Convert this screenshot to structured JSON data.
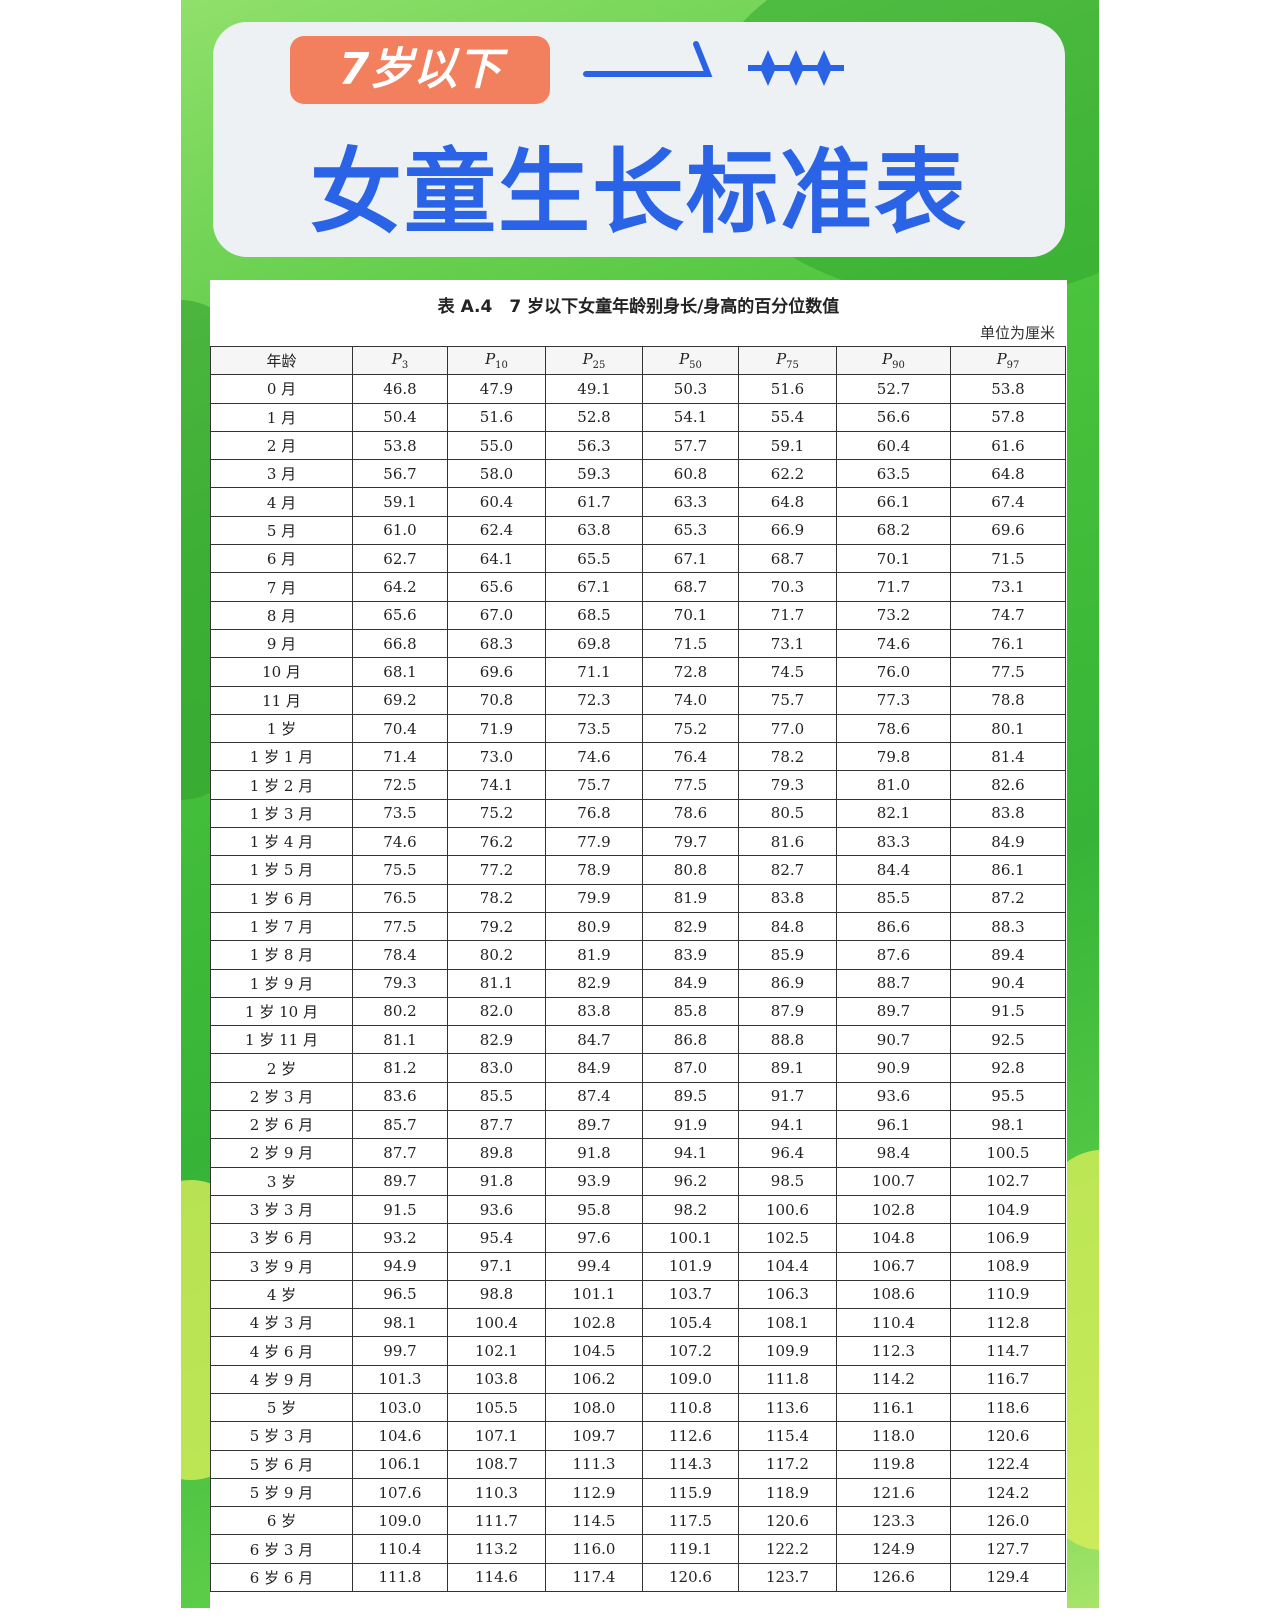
{
  "header": {
    "tag": "7岁以下",
    "title": "女童生长标准表"
  },
  "table": {
    "caption": "表 A.4　7 岁以下女童年龄别身长/身高的百分位数值",
    "unit": "单位为厘米",
    "columns": [
      "年龄",
      {
        "symbol": "P",
        "subscript": "3"
      },
      {
        "symbol": "P",
        "subscript": "10"
      },
      {
        "symbol": "P",
        "subscript": "25"
      },
      {
        "symbol": "P",
        "subscript": "50"
      },
      {
        "symbol": "P",
        "subscript": "75"
      },
      {
        "symbol": "P",
        "subscript": "90"
      },
      {
        "symbol": "P",
        "subscript": "97"
      }
    ],
    "rows": [
      [
        "0 月",
        "46.8",
        "47.9",
        "49.1",
        "50.3",
        "51.6",
        "52.7",
        "53.8"
      ],
      [
        "1 月",
        "50.4",
        "51.6",
        "52.8",
        "54.1",
        "55.4",
        "56.6",
        "57.8"
      ],
      [
        "2 月",
        "53.8",
        "55.0",
        "56.3",
        "57.7",
        "59.1",
        "60.4",
        "61.6"
      ],
      [
        "3 月",
        "56.7",
        "58.0",
        "59.3",
        "60.8",
        "62.2",
        "63.5",
        "64.8"
      ],
      [
        "4 月",
        "59.1",
        "60.4",
        "61.7",
        "63.3",
        "64.8",
        "66.1",
        "67.4"
      ],
      [
        "5 月",
        "61.0",
        "62.4",
        "63.8",
        "65.3",
        "66.9",
        "68.2",
        "69.6"
      ],
      [
        "6 月",
        "62.7",
        "64.1",
        "65.5",
        "67.1",
        "68.7",
        "70.1",
        "71.5"
      ],
      [
        "7 月",
        "64.2",
        "65.6",
        "67.1",
        "68.7",
        "70.3",
        "71.7",
        "73.1"
      ],
      [
        "8 月",
        "65.6",
        "67.0",
        "68.5",
        "70.1",
        "71.7",
        "73.2",
        "74.7"
      ],
      [
        "9 月",
        "66.8",
        "68.3",
        "69.8",
        "71.5",
        "73.1",
        "74.6",
        "76.1"
      ],
      [
        "10 月",
        "68.1",
        "69.6",
        "71.1",
        "72.8",
        "74.5",
        "76.0",
        "77.5"
      ],
      [
        "11 月",
        "69.2",
        "70.8",
        "72.3",
        "74.0",
        "75.7",
        "77.3",
        "78.8"
      ],
      [
        "1 岁",
        "70.4",
        "71.9",
        "73.5",
        "75.2",
        "77.0",
        "78.6",
        "80.1"
      ],
      [
        "1 岁 1 月",
        "71.4",
        "73.0",
        "74.6",
        "76.4",
        "78.2",
        "79.8",
        "81.4"
      ],
      [
        "1 岁 2 月",
        "72.5",
        "74.1",
        "75.7",
        "77.5",
        "79.3",
        "81.0",
        "82.6"
      ],
      [
        "1 岁 3 月",
        "73.5",
        "75.2",
        "76.8",
        "78.6",
        "80.5",
        "82.1",
        "83.8"
      ],
      [
        "1 岁 4 月",
        "74.6",
        "76.2",
        "77.9",
        "79.7",
        "81.6",
        "83.3",
        "84.9"
      ],
      [
        "1 岁 5 月",
        "75.5",
        "77.2",
        "78.9",
        "80.8",
        "82.7",
        "84.4",
        "86.1"
      ],
      [
        "1 岁 6 月",
        "76.5",
        "78.2",
        "79.9",
        "81.9",
        "83.8",
        "85.5",
        "87.2"
      ],
      [
        "1 岁 7 月",
        "77.5",
        "79.2",
        "80.9",
        "82.9",
        "84.8",
        "86.6",
        "88.3"
      ],
      [
        "1 岁 8 月",
        "78.4",
        "80.2",
        "81.9",
        "83.9",
        "85.9",
        "87.6",
        "89.4"
      ],
      [
        "1 岁 9 月",
        "79.3",
        "81.1",
        "82.9",
        "84.9",
        "86.9",
        "88.7",
        "90.4"
      ],
      [
        "1 岁 10 月",
        "80.2",
        "82.0",
        "83.8",
        "85.8",
        "87.9",
        "89.7",
        "91.5"
      ],
      [
        "1 岁 11 月",
        "81.1",
        "82.9",
        "84.7",
        "86.8",
        "88.8",
        "90.7",
        "92.5"
      ],
      [
        "2 岁",
        "81.2",
        "83.0",
        "84.9",
        "87.0",
        "89.1",
        "90.9",
        "92.8"
      ],
      [
        "2 岁 3 月",
        "83.6",
        "85.5",
        "87.4",
        "89.5",
        "91.7",
        "93.6",
        "95.5"
      ],
      [
        "2 岁 6 月",
        "85.7",
        "87.7",
        "89.7",
        "91.9",
        "94.1",
        "96.1",
        "98.1"
      ],
      [
        "2 岁 9 月",
        "87.7",
        "89.8",
        "91.8",
        "94.1",
        "96.4",
        "98.4",
        "100.5"
      ],
      [
        "3 岁",
        "89.7",
        "91.8",
        "93.9",
        "96.2",
        "98.5",
        "100.7",
        "102.7"
      ],
      [
        "3 岁 3 月",
        "91.5",
        "93.6",
        "95.8",
        "98.2",
        "100.6",
        "102.8",
        "104.9"
      ],
      [
        "3 岁 6 月",
        "93.2",
        "95.4",
        "97.6",
        "100.1",
        "102.5",
        "104.8",
        "106.9"
      ],
      [
        "3 岁 9 月",
        "94.9",
        "97.1",
        "99.4",
        "101.9",
        "104.4",
        "106.7",
        "108.9"
      ],
      [
        "4 岁",
        "96.5",
        "98.8",
        "101.1",
        "103.7",
        "106.3",
        "108.6",
        "110.9"
      ],
      [
        "4 岁 3 月",
        "98.1",
        "100.4",
        "102.8",
        "105.4",
        "108.1",
        "110.4",
        "112.8"
      ],
      [
        "4 岁 6 月",
        "99.7",
        "102.1",
        "104.5",
        "107.2",
        "109.9",
        "112.3",
        "114.7"
      ],
      [
        "4 岁 9 月",
        "101.3",
        "103.8",
        "106.2",
        "109.0",
        "111.8",
        "114.2",
        "116.7"
      ],
      [
        "5 岁",
        "103.0",
        "105.5",
        "108.0",
        "110.8",
        "113.6",
        "116.1",
        "118.6"
      ],
      [
        "5 岁 3 月",
        "104.6",
        "107.1",
        "109.7",
        "112.6",
        "115.4",
        "118.0",
        "120.6"
      ],
      [
        "5 岁 6 月",
        "106.1",
        "108.7",
        "111.3",
        "114.3",
        "117.2",
        "119.8",
        "122.4"
      ],
      [
        "5 岁 9 月",
        "107.6",
        "110.3",
        "112.9",
        "115.9",
        "118.9",
        "121.6",
        "124.2"
      ],
      [
        "6 岁",
        "109.0",
        "111.7",
        "114.5",
        "117.5",
        "120.6",
        "123.3",
        "126.0"
      ],
      [
        "6 岁 3 月",
        "110.4",
        "113.2",
        "116.0",
        "119.1",
        "122.2",
        "124.9",
        "127.7"
      ],
      [
        "6 岁 6 月",
        "111.8",
        "114.6",
        "117.4",
        "120.6",
        "123.7",
        "126.6",
        "129.4"
      ]
    ]
  }
}
